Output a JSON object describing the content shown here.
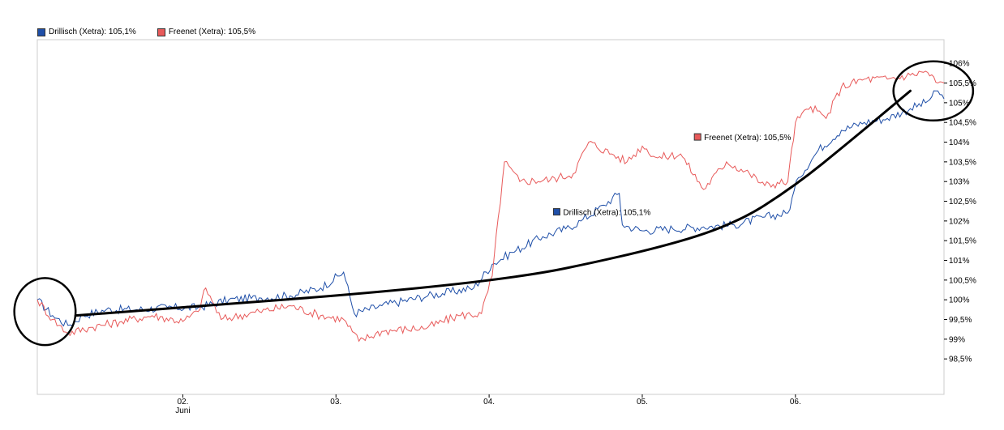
{
  "chart_data": {
    "type": "line",
    "legend": {
      "placement": "top-left",
      "entries": [
        {
          "label": "Drillisch (Xetra): 105,1%",
          "color": "#1f4fa8"
        },
        {
          "label": "Freenet (Xetra): 105,5%",
          "color": "#e85a5a"
        }
      ]
    },
    "inline_labels": [
      {
        "label": "Freenet (Xetra): 105,5%",
        "color": "#e85a5a"
      },
      {
        "label": "Drillisch (Xetra): 105,1%",
        "color": "#1f4fa8"
      }
    ],
    "y_ticks": [
      "106%",
      "105,5%",
      "105%",
      "104,5%",
      "104%",
      "103,5%",
      "103%",
      "102,5%",
      "102%",
      "101,5%",
      "101%",
      "100,5%",
      "100%",
      "99,5%",
      "99%",
      "98,5%"
    ],
    "y_tick_values": [
      106,
      105.5,
      105,
      104.5,
      104,
      103.5,
      103,
      102.5,
      102,
      101.5,
      101,
      100.5,
      100,
      99.5,
      99,
      98.5
    ],
    "ylim": [
      97.6,
      106.6
    ],
    "x_ticks": [
      "02.",
      "03.",
      "04.",
      "05.",
      "06."
    ],
    "x_tick_sublabel": "Juni",
    "x_tick_positions": [
      1,
      2,
      3,
      4,
      5
    ],
    "xlim": [
      0.05,
      5.97
    ],
    "grid": false,
    "series": [
      {
        "name": "Drillisch (Xetra)",
        "color": "#1f4fa8",
        "points": [
          [
            0.05,
            100.0
          ],
          [
            0.15,
            99.6
          ],
          [
            0.25,
            99.35
          ],
          [
            0.35,
            99.6
          ],
          [
            0.5,
            99.75
          ],
          [
            0.7,
            99.75
          ],
          [
            0.9,
            99.8
          ],
          [
            1.1,
            99.8
          ],
          [
            1.3,
            100.0
          ],
          [
            1.5,
            100.05
          ],
          [
            1.7,
            100.1
          ],
          [
            1.9,
            100.3
          ],
          [
            2.05,
            100.7
          ],
          [
            2.12,
            99.65
          ],
          [
            2.3,
            99.85
          ],
          [
            2.6,
            100.1
          ],
          [
            2.9,
            100.3
          ],
          [
            3.02,
            100.9
          ],
          [
            3.15,
            101.2
          ],
          [
            3.35,
            101.6
          ],
          [
            3.5,
            101.8
          ],
          [
            3.6,
            102.0
          ],
          [
            3.75,
            102.4
          ],
          [
            3.85,
            102.7
          ],
          [
            3.87,
            101.9
          ],
          [
            4.0,
            101.75
          ],
          [
            4.2,
            101.8
          ],
          [
            4.4,
            101.85
          ],
          [
            4.6,
            101.9
          ],
          [
            4.8,
            102.1
          ],
          [
            4.95,
            102.2
          ],
          [
            5.02,
            103.1
          ],
          [
            5.15,
            103.8
          ],
          [
            5.3,
            104.3
          ],
          [
            5.45,
            104.5
          ],
          [
            5.6,
            104.6
          ],
          [
            5.75,
            104.85
          ],
          [
            5.85,
            105.0
          ],
          [
            5.93,
            105.3
          ],
          [
            5.97,
            105.1
          ]
        ]
      },
      {
        "name": "Freenet (Xetra)",
        "color": "#e85a5a",
        "points": [
          [
            0.05,
            100.0
          ],
          [
            0.15,
            99.5
          ],
          [
            0.25,
            99.15
          ],
          [
            0.4,
            99.3
          ],
          [
            0.6,
            99.45
          ],
          [
            0.8,
            99.6
          ],
          [
            1.0,
            99.45
          ],
          [
            1.1,
            99.7
          ],
          [
            1.15,
            100.3
          ],
          [
            1.25,
            99.5
          ],
          [
            1.5,
            99.7
          ],
          [
            1.7,
            99.85
          ],
          [
            1.9,
            99.6
          ],
          [
            2.05,
            99.5
          ],
          [
            2.15,
            98.95
          ],
          [
            2.3,
            99.2
          ],
          [
            2.6,
            99.3
          ],
          [
            2.8,
            99.6
          ],
          [
            2.95,
            99.65
          ],
          [
            3.02,
            100.6
          ],
          [
            3.1,
            103.5
          ],
          [
            3.2,
            103.0
          ],
          [
            3.4,
            103.05
          ],
          [
            3.55,
            103.2
          ],
          [
            3.65,
            104.0
          ],
          [
            3.8,
            103.7
          ],
          [
            3.9,
            103.5
          ],
          [
            4.0,
            103.9
          ],
          [
            4.1,
            103.6
          ],
          [
            4.25,
            103.7
          ],
          [
            4.4,
            102.8
          ],
          [
            4.55,
            103.5
          ],
          [
            4.7,
            103.2
          ],
          [
            4.8,
            102.9
          ],
          [
            4.95,
            103.0
          ],
          [
            5.0,
            104.5
          ],
          [
            5.1,
            104.9
          ],
          [
            5.2,
            104.6
          ],
          [
            5.3,
            105.4
          ],
          [
            5.45,
            105.6
          ],
          [
            5.6,
            105.6
          ],
          [
            5.75,
            105.7
          ],
          [
            5.85,
            105.8
          ],
          [
            5.93,
            105.5
          ],
          [
            5.97,
            105.5
          ]
        ]
      }
    ],
    "annotations": {
      "trend_curve": [
        [
          0.3,
          99.6
        ],
        [
          3.0,
          100.4
        ],
        [
          4.0,
          101.2
        ],
        [
          4.6,
          101.9
        ],
        [
          5.0,
          102.9
        ],
        [
          5.35,
          104.0
        ],
        [
          5.75,
          105.3
        ]
      ],
      "circles": [
        {
          "cx": 0.1,
          "cy": 99.7,
          "rx": 0.2,
          "ry": 0.85
        },
        {
          "cx": 5.9,
          "cy": 105.3,
          "rx": 0.26,
          "ry": 0.75
        }
      ]
    }
  }
}
